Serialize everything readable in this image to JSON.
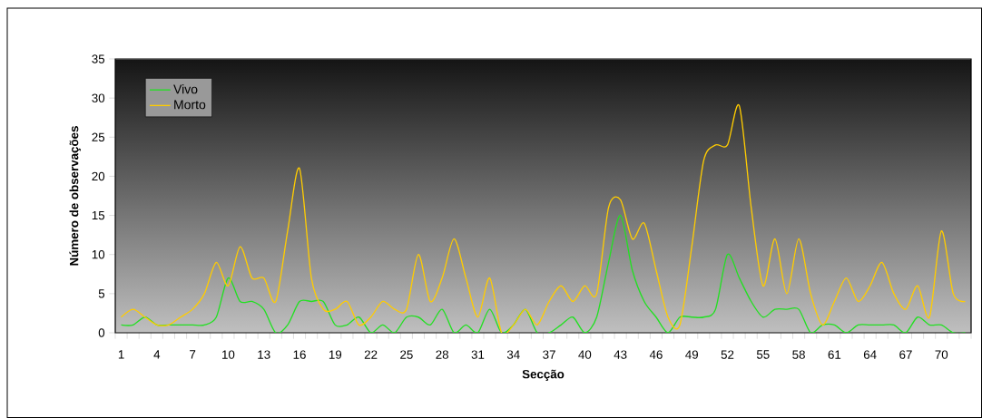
{
  "chart_data": {
    "type": "line",
    "xlabel": "Secção",
    "ylabel": "Número de observações",
    "legend": "top left",
    "ylim": [
      0,
      35
    ],
    "yticks": [
      0,
      5,
      10,
      15,
      20,
      25,
      30,
      35
    ],
    "categories": [
      "1",
      null,
      null,
      "4",
      null,
      null,
      "7",
      null,
      null,
      "10",
      null,
      null,
      "13",
      null,
      null,
      "16",
      null,
      null,
      "19",
      null,
      null,
      "22",
      null,
      null,
      "25",
      null,
      null,
      "28",
      null,
      null,
      "31",
      null,
      null,
      "34",
      null,
      null,
      "37",
      null,
      null,
      "40",
      null,
      null,
      "43",
      null,
      null,
      "46",
      null,
      null,
      "49",
      null,
      null,
      "52",
      null,
      null,
      "55",
      null,
      null,
      "58",
      null,
      null,
      "61",
      null,
      null,
      "64",
      null,
      null,
      "67",
      null,
      null,
      "70",
      null,
      null
    ],
    "series": [
      {
        "name": "Vivo",
        "color": "#22e022",
        "values": [
          1,
          1,
          2,
          1,
          1,
          1,
          1,
          1,
          2,
          7,
          4,
          4,
          3,
          0,
          1,
          4,
          4,
          4,
          1,
          1,
          2,
          0,
          1,
          0,
          2,
          2,
          1,
          3,
          0,
          1,
          0,
          3,
          0,
          1,
          3,
          0,
          0,
          1,
          2,
          0,
          2,
          9,
          15,
          8,
          4,
          2,
          0,
          2,
          2,
          2,
          3,
          10,
          7,
          4,
          2,
          3,
          3,
          3,
          0,
          1,
          1,
          0,
          1,
          1,
          1,
          1,
          0,
          2,
          1,
          1,
          0,
          0
        ]
      },
      {
        "name": "Morto",
        "color": "#ffcc00",
        "values": [
          2,
          3,
          2,
          1,
          1,
          2,
          3,
          5,
          9,
          6,
          11,
          7,
          7,
          4,
          13,
          21,
          7,
          3,
          3,
          4,
          1,
          2,
          4,
          3,
          3,
          10,
          4,
          7,
          12,
          7,
          2,
          7,
          0,
          1,
          3,
          1,
          4,
          6,
          4,
          6,
          5,
          16,
          17,
          12,
          14,
          8,
          2,
          1,
          11,
          22,
          24,
          24,
          29,
          16,
          6,
          12,
          5,
          12,
          5,
          1,
          4,
          7,
          4,
          6,
          9,
          5,
          3,
          6,
          2,
          13,
          5,
          4
        ]
      }
    ]
  }
}
